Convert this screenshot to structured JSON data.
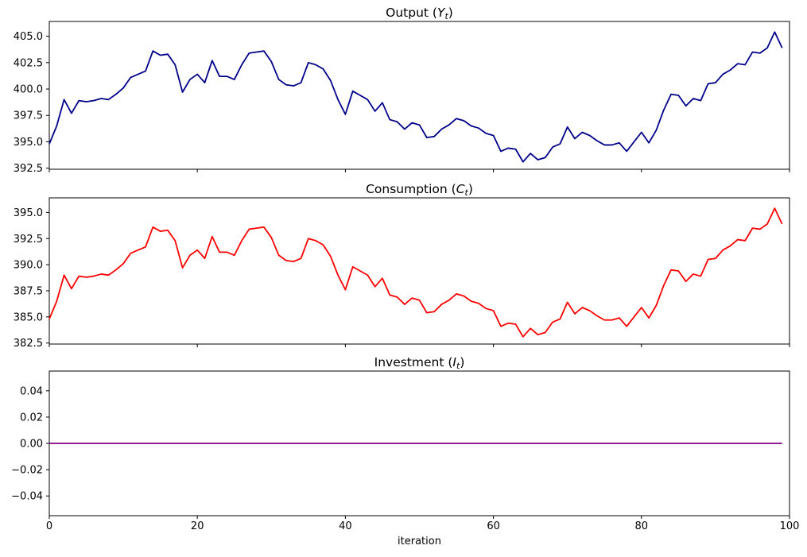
{
  "figure": {
    "xlabel": "iteration",
    "xlim": [
      0,
      100
    ],
    "xticks": [
      0,
      20,
      40,
      60,
      80,
      100
    ],
    "xticklabels": [
      "0",
      "20",
      "40",
      "60",
      "80",
      "100"
    ],
    "background_color": "#ffffff",
    "axis_color": "#000000",
    "grid": "off",
    "legend": "none"
  },
  "chart_data": [
    {
      "type": "line",
      "id": "output",
      "title": {
        "pre": "Output (",
        "var": "Y",
        "sub": "t",
        "post": ")"
      },
      "series_name": "Output (Yt)",
      "color": "#00008B",
      "ylim": [
        392.4,
        406.4
      ],
      "yticks": [
        392.5,
        395.0,
        397.5,
        400.0,
        402.5,
        405.0
      ],
      "yticklabels": [
        "392.5",
        "395.0",
        "397.5",
        "400.0",
        "402.5",
        "405.0"
      ],
      "x_start": 0,
      "x_step": 1,
      "show_xticklabels": false,
      "values": [
        394.8,
        396.5,
        399.0,
        397.7,
        398.9,
        398.8,
        398.9,
        399.1,
        399.0,
        399.5,
        400.1,
        401.1,
        401.4,
        401.7,
        403.6,
        403.2,
        403.3,
        402.3,
        399.7,
        400.9,
        401.4,
        400.6,
        402.7,
        401.2,
        401.2,
        400.9,
        402.3,
        403.4,
        403.5,
        403.6,
        402.6,
        400.9,
        400.4,
        400.3,
        400.6,
        402.5,
        402.3,
        401.9,
        400.8,
        399.0,
        397.6,
        399.8,
        399.4,
        399.0,
        397.9,
        398.7,
        397.1,
        396.9,
        396.2,
        396.8,
        396.6,
        395.4,
        395.5,
        396.2,
        396.6,
        397.2,
        397.0,
        396.5,
        396.3,
        395.8,
        395.6,
        394.1,
        394.4,
        394.3,
        393.1,
        393.9,
        393.3,
        393.5,
        394.5,
        394.8,
        396.4,
        395.3,
        395.9,
        395.6,
        395.1,
        394.7,
        394.7,
        394.9,
        394.1,
        395.0,
        395.9,
        394.9,
        396.1,
        398.0,
        399.5,
        399.4,
        398.4,
        399.1,
        398.9,
        400.5,
        400.6,
        401.4,
        401.8,
        402.4,
        402.3,
        403.5,
        403.4,
        403.9,
        405.4,
        403.9
      ]
    },
    {
      "type": "line",
      "id": "consumption",
      "title": {
        "pre": "Consumption (",
        "var": "C",
        "sub": "t",
        "post": ")"
      },
      "series_name": "Consumption (Ct)",
      "color": "#FF0000",
      "ylim": [
        382.4,
        396.4
      ],
      "yticks": [
        382.5,
        385.0,
        387.5,
        390.0,
        392.5,
        395.0
      ],
      "yticklabels": [
        "382.5",
        "385.0",
        "387.5",
        "390.0",
        "392.5",
        "395.0"
      ],
      "x_start": 0,
      "x_step": 1,
      "show_xticklabels": false,
      "values": [
        384.8,
        386.5,
        389.0,
        387.7,
        388.9,
        388.8,
        388.9,
        389.1,
        389.0,
        389.5,
        390.1,
        391.1,
        391.4,
        391.7,
        393.6,
        393.2,
        393.3,
        392.3,
        389.7,
        390.9,
        391.4,
        390.6,
        392.7,
        391.2,
        391.2,
        390.9,
        392.3,
        393.4,
        393.5,
        393.6,
        392.6,
        390.9,
        390.4,
        390.3,
        390.6,
        392.5,
        392.3,
        391.9,
        390.8,
        389.0,
        387.6,
        389.8,
        389.4,
        389.0,
        387.9,
        388.7,
        387.1,
        386.9,
        386.2,
        386.8,
        386.6,
        385.4,
        385.5,
        386.2,
        386.6,
        387.2,
        387.0,
        386.5,
        386.3,
        385.8,
        385.6,
        384.1,
        384.4,
        384.3,
        383.1,
        383.9,
        383.3,
        383.5,
        384.5,
        384.8,
        386.4,
        385.3,
        385.9,
        385.6,
        385.1,
        384.7,
        384.7,
        384.9,
        384.1,
        385.0,
        385.9,
        384.9,
        386.1,
        388.0,
        389.5,
        389.4,
        388.4,
        389.1,
        388.9,
        390.5,
        390.6,
        391.4,
        391.8,
        392.4,
        392.3,
        393.5,
        393.4,
        393.9,
        395.4,
        393.9
      ]
    },
    {
      "type": "line",
      "id": "investment",
      "title": {
        "pre": "Investment (",
        "var": "I",
        "sub": "t",
        "post": ")"
      },
      "series_name": "Investment (It)",
      "color": "#800080",
      "ylim": [
        -0.055,
        0.055
      ],
      "yticks": [
        -0.04,
        -0.02,
        0.0,
        0.02,
        0.04
      ],
      "yticklabels": [
        "−0.04",
        "−0.02",
        "0.00",
        "0.02",
        "0.04"
      ],
      "x_start": 0,
      "x_step": 1,
      "show_xticklabels": true,
      "values": [
        0,
        0,
        0,
        0,
        0,
        0,
        0,
        0,
        0,
        0,
        0,
        0,
        0,
        0,
        0,
        0,
        0,
        0,
        0,
        0,
        0,
        0,
        0,
        0,
        0,
        0,
        0,
        0,
        0,
        0,
        0,
        0,
        0,
        0,
        0,
        0,
        0,
        0,
        0,
        0,
        0,
        0,
        0,
        0,
        0,
        0,
        0,
        0,
        0,
        0,
        0,
        0,
        0,
        0,
        0,
        0,
        0,
        0,
        0,
        0,
        0,
        0,
        0,
        0,
        0,
        0,
        0,
        0,
        0,
        0,
        0,
        0,
        0,
        0,
        0,
        0,
        0,
        0,
        0,
        0,
        0,
        0,
        0,
        0,
        0,
        0,
        0,
        0,
        0,
        0,
        0,
        0,
        0,
        0,
        0,
        0,
        0,
        0,
        0,
        0
      ]
    }
  ]
}
